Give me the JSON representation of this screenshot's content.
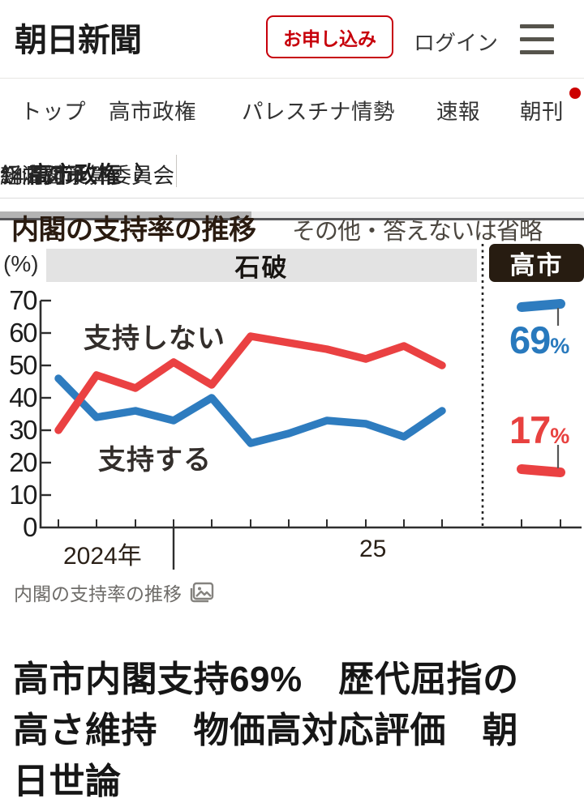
{
  "header": {
    "logo": "朝日新聞",
    "signup_label": "お申し込み",
    "login_label": "ログイン"
  },
  "nav": {
    "items": [
      "トップ",
      "高市政権",
      "パレスチナ情勢",
      "速報",
      "朝刊"
    ],
    "notification_dot_on": "朝刊"
  },
  "subnav": {
    "section": "高市政権",
    "chevron": "〉",
    "items": [
      "14日の予算委員会",
      "経済対策",
      "新内閣"
    ]
  },
  "figure": {
    "title": "内閣の支持率の推移",
    "note": "その他・答えないは省略",
    "caption": "内閣の支持率の推移",
    "caption_icon": "image-icon"
  },
  "chart_data": {
    "type": "line",
    "title": "内閣の支持率の推移",
    "note": "その他・答えないは省略",
    "unit": "(%)",
    "ylim": [
      0,
      70
    ],
    "y_ticks": [
      0,
      10,
      20,
      30,
      40,
      50,
      60,
      70
    ],
    "x_tick_labels": [
      "2024年",
      "25"
    ],
    "grid": false,
    "legend_position": "inline",
    "eras": [
      {
        "name": "石破",
        "series": [
          {
            "name": "支持する",
            "color": "#2e7cbf",
            "values": [
              46,
              34,
              36,
              33,
              40,
              26,
              29,
              33,
              32,
              28,
              36
            ]
          },
          {
            "name": "支持しない",
            "color": "#ea4142",
            "values": [
              30,
              47,
              43,
              51,
              44,
              59,
              57,
              55,
              52,
              56,
              50
            ]
          }
        ]
      },
      {
        "name": "高市",
        "series": [
          {
            "name": "支持する",
            "color": "#2e7cbf",
            "values": [
              68,
              69
            ],
            "end_label": {
              "number": "69",
              "unit": "%"
            }
          },
          {
            "name": "支持しない",
            "color": "#ea4142",
            "values": [
              18,
              17
            ],
            "end_label": {
              "number": "17",
              "unit": "%"
            }
          }
        ]
      }
    ]
  },
  "headline": "高市内閣支持69%　歴代屈指の高さ維持　物価高対応評価　朝日世論",
  "colors": {
    "accent_red": "#c7000b",
    "notification_red": "#cc0000",
    "line_blue": "#2e7cbf",
    "line_red": "#ea4142",
    "era_band_gray": "#e3e3e3",
    "era_box_dark": "#271c11"
  }
}
